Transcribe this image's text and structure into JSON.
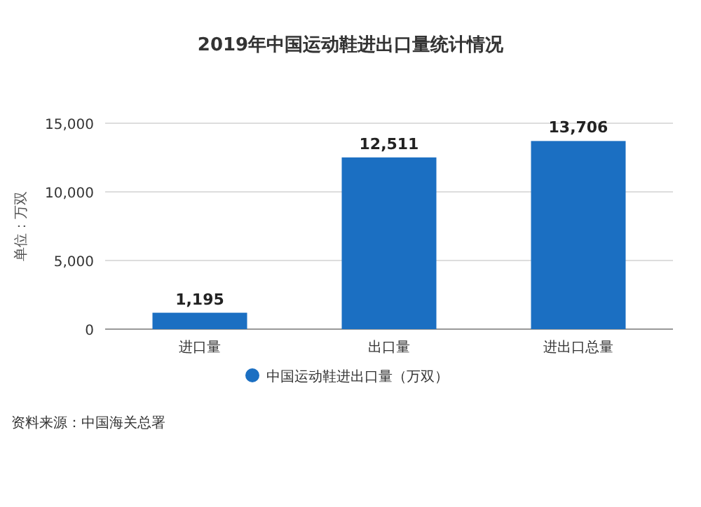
{
  "chart_data": {
    "type": "bar",
    "title": "2019年中国运动鞋进出口量统计情况",
    "ylabel": "单位：万双",
    "categories": [
      "进口量",
      "出口量",
      "进出口总量"
    ],
    "series": [
      {
        "name": "中国运动鞋进出口量（万双）",
        "color": "#1b6fc2",
        "values": [
          1195,
          12511,
          13706
        ]
      }
    ],
    "value_labels": [
      "1,195",
      "12,511",
      "13,706"
    ],
    "ylim": [
      0,
      15000
    ],
    "yticks": [
      {
        "value": 0,
        "label": "0"
      },
      {
        "value": 5000,
        "label": "5,000"
      },
      {
        "value": 10000,
        "label": "10,000"
      },
      {
        "value": 15000,
        "label": "15,000"
      }
    ],
    "grid": "y",
    "legend": "bottom",
    "annotations": [
      "资料来源：中国海关总署"
    ]
  }
}
